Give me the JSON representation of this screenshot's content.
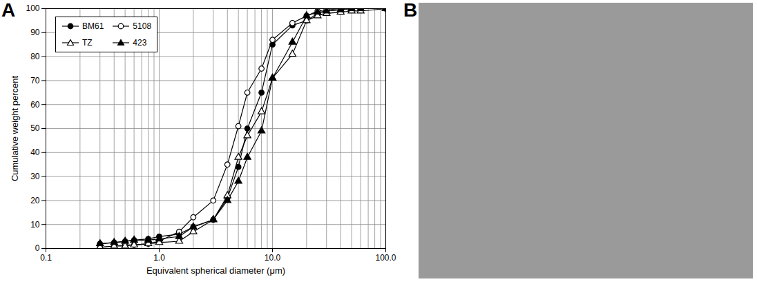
{
  "chart_data": {
    "type": "line",
    "panel_label": "A",
    "x_label": "Equivalent spherical diameter (μm)",
    "y_label": "Cumulative weight percent",
    "log": "x",
    "grid": true,
    "legend": "upper left",
    "xlim": [
      0.1,
      100
    ],
    "xticks": [
      0.1,
      {
        "value": 1,
        "label": "1.0"
      },
      {
        "value": 10,
        "label": "10.0"
      },
      {
        "value": 100,
        "label": "100.0"
      }
    ],
    "ylim": [
      0,
      100
    ],
    "yticks": [
      0,
      10,
      20,
      30,
      40,
      50,
      60,
      70,
      80,
      90,
      100
    ],
    "x": [
      0.3,
      0.4,
      0.5,
      0.6,
      0.8,
      1.0,
      1.5,
      2,
      3,
      4,
      5,
      6,
      8,
      10,
      15,
      20,
      25,
      30,
      40,
      50,
      60,
      100
    ],
    "series": [
      {
        "name": "BM61",
        "color": "#000000",
        "marker": "filled_circle",
        "values": [
          2,
          2.5,
          3,
          3.5,
          4,
          5,
          6,
          9,
          12,
          21,
          34,
          50,
          65,
          85,
          93,
          95,
          98,
          99,
          99.5,
          100,
          100,
          100
        ]
      },
      {
        "name": "5108",
        "color": "#000000",
        "marker": "open_circle",
        "values": [
          0.5,
          1,
          1.5,
          1.5,
          2,
          3,
          7,
          13,
          20,
          35,
          51,
          65,
          75,
          87,
          94,
          97,
          99,
          99.5,
          100,
          100,
          100,
          100
        ]
      },
      {
        "name": "TZ",
        "color": "#000000",
        "marker": "open_triangle",
        "values": [
          0.5,
          1,
          1,
          1.5,
          2,
          2.5,
          3,
          7,
          12,
          22,
          38,
          47,
          57,
          71,
          81,
          95,
          97,
          98,
          98.5,
          99,
          99,
          100
        ]
      },
      {
        "name": "423",
        "color": "#000000",
        "marker": "filled_triangle",
        "values": [
          2,
          2.5,
          3,
          3.5,
          3.5,
          4,
          5,
          9,
          12,
          20,
          28,
          38,
          49,
          71,
          86,
          97,
          98.5,
          99,
          99.5,
          100,
          100,
          100
        ]
      }
    ]
  },
  "panel_b": {
    "panel_label": "B",
    "type": "image"
  }
}
